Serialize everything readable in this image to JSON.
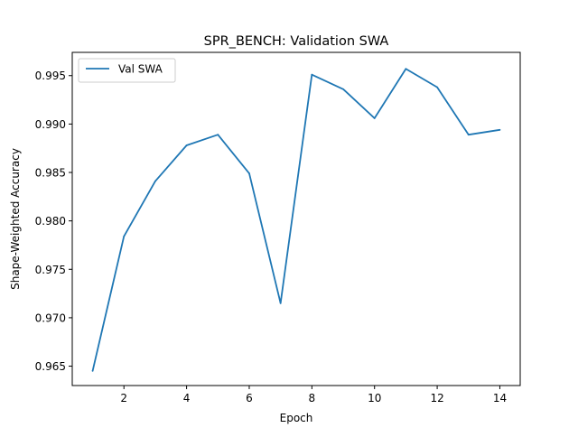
{
  "chart_data": {
    "type": "line",
    "title": "SPR_BENCH: Validation SWA",
    "xlabel": "Epoch",
    "ylabel": "Shape-Weighted Accuracy",
    "xlim": [
      0.35,
      14.65
    ],
    "ylim": [
      0.963,
      0.9974
    ],
    "xticks": [
      2,
      4,
      6,
      8,
      10,
      12,
      14
    ],
    "yticks": [
      0.965,
      0.97,
      0.975,
      0.98,
      0.985,
      0.99,
      0.995
    ],
    "ytick_labels": [
      "0.965",
      "0.970",
      "0.975",
      "0.980",
      "0.985",
      "0.990",
      "0.995"
    ],
    "grid": false,
    "legend_position": "upper-left",
    "series": [
      {
        "name": "Val SWA",
        "color": "#1f77b4",
        "x": [
          1,
          2,
          3,
          4,
          5,
          6,
          7,
          8,
          9,
          10,
          11,
          12,
          13,
          14
        ],
        "y": [
          0.9645,
          0.9784,
          0.9841,
          0.9878,
          0.9889,
          0.9849,
          0.9715,
          0.9951,
          0.9936,
          0.9906,
          0.9957,
          0.9938,
          0.9889,
          0.9894
        ]
      }
    ]
  }
}
